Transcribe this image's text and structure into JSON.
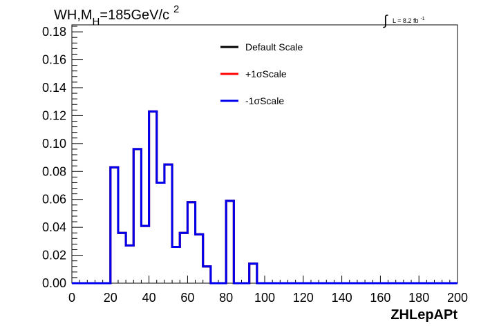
{
  "chart_data": {
    "type": "line",
    "title": {
      "main": "WH,M",
      "subscript": "H",
      "value": "=185GeV/c",
      "superscript": "2"
    },
    "lumi": {
      "symbol": "∫",
      "text": "L = 8.2 fb",
      "superscript": "-1"
    },
    "xlabel": "ZHLepAPt",
    "ylabel": "",
    "xlim": [
      0,
      200
    ],
    "ylim": [
      0,
      0.185
    ],
    "xticks": [
      0,
      20,
      40,
      60,
      80,
      100,
      120,
      140,
      160,
      180,
      200
    ],
    "xtick_labels": [
      "0",
      "20",
      "40",
      "60",
      "80",
      "100",
      "120",
      "140",
      "160",
      "180",
      "200"
    ],
    "yticks": [
      0.0,
      0.02,
      0.04,
      0.06,
      0.08,
      0.1,
      0.12,
      0.14,
      0.16,
      0.18
    ],
    "ytick_labels": [
      "0.00",
      "0.02",
      "0.04",
      "0.06",
      "0.08",
      "0.10",
      "0.12",
      "0.14",
      "0.16",
      "0.18"
    ],
    "bin_width": 4,
    "bin_edges_start": 0,
    "grid": false,
    "legend_position": "top-center",
    "series": [
      {
        "name": "Default Scale",
        "color": "#000000",
        "values": [
          0,
          0,
          0,
          0,
          0,
          0.083,
          0.036,
          0.027,
          0.096,
          0.041,
          0.123,
          0.072,
          0.085,
          0.026,
          0.036,
          0.058,
          0.035,
          0.012,
          0,
          0,
          0.059,
          0,
          0,
          0.014,
          0,
          0,
          0,
          0,
          0,
          0,
          0,
          0,
          0,
          0,
          0,
          0,
          0,
          0,
          0,
          0,
          0,
          0,
          0,
          0,
          0,
          0,
          0,
          0,
          0,
          0
        ]
      },
      {
        "name": "+1σScale",
        "color": "#ff0000",
        "values": [
          0,
          0,
          0,
          0,
          0,
          0.083,
          0.036,
          0.027,
          0.096,
          0.041,
          0.123,
          0.072,
          0.085,
          0.026,
          0.036,
          0.058,
          0.035,
          0.012,
          0,
          0,
          0.059,
          0,
          0,
          0.014,
          0,
          0,
          0,
          0,
          0,
          0,
          0,
          0,
          0,
          0,
          0,
          0,
          0,
          0,
          0,
          0,
          0,
          0,
          0,
          0,
          0,
          0,
          0,
          0,
          0,
          0
        ]
      },
      {
        "name": "-1σScale",
        "color": "#0000ee",
        "values": [
          0,
          0,
          0,
          0,
          0,
          0.083,
          0.036,
          0.027,
          0.096,
          0.041,
          0.123,
          0.072,
          0.085,
          0.026,
          0.036,
          0.058,
          0.035,
          0.012,
          0,
          0,
          0.059,
          0,
          0,
          0.014,
          0,
          0,
          0,
          0,
          0,
          0,
          0,
          0,
          0,
          0,
          0,
          0,
          0,
          0,
          0,
          0,
          0,
          0,
          0,
          0,
          0,
          0,
          0,
          0,
          0,
          0
        ]
      }
    ]
  }
}
